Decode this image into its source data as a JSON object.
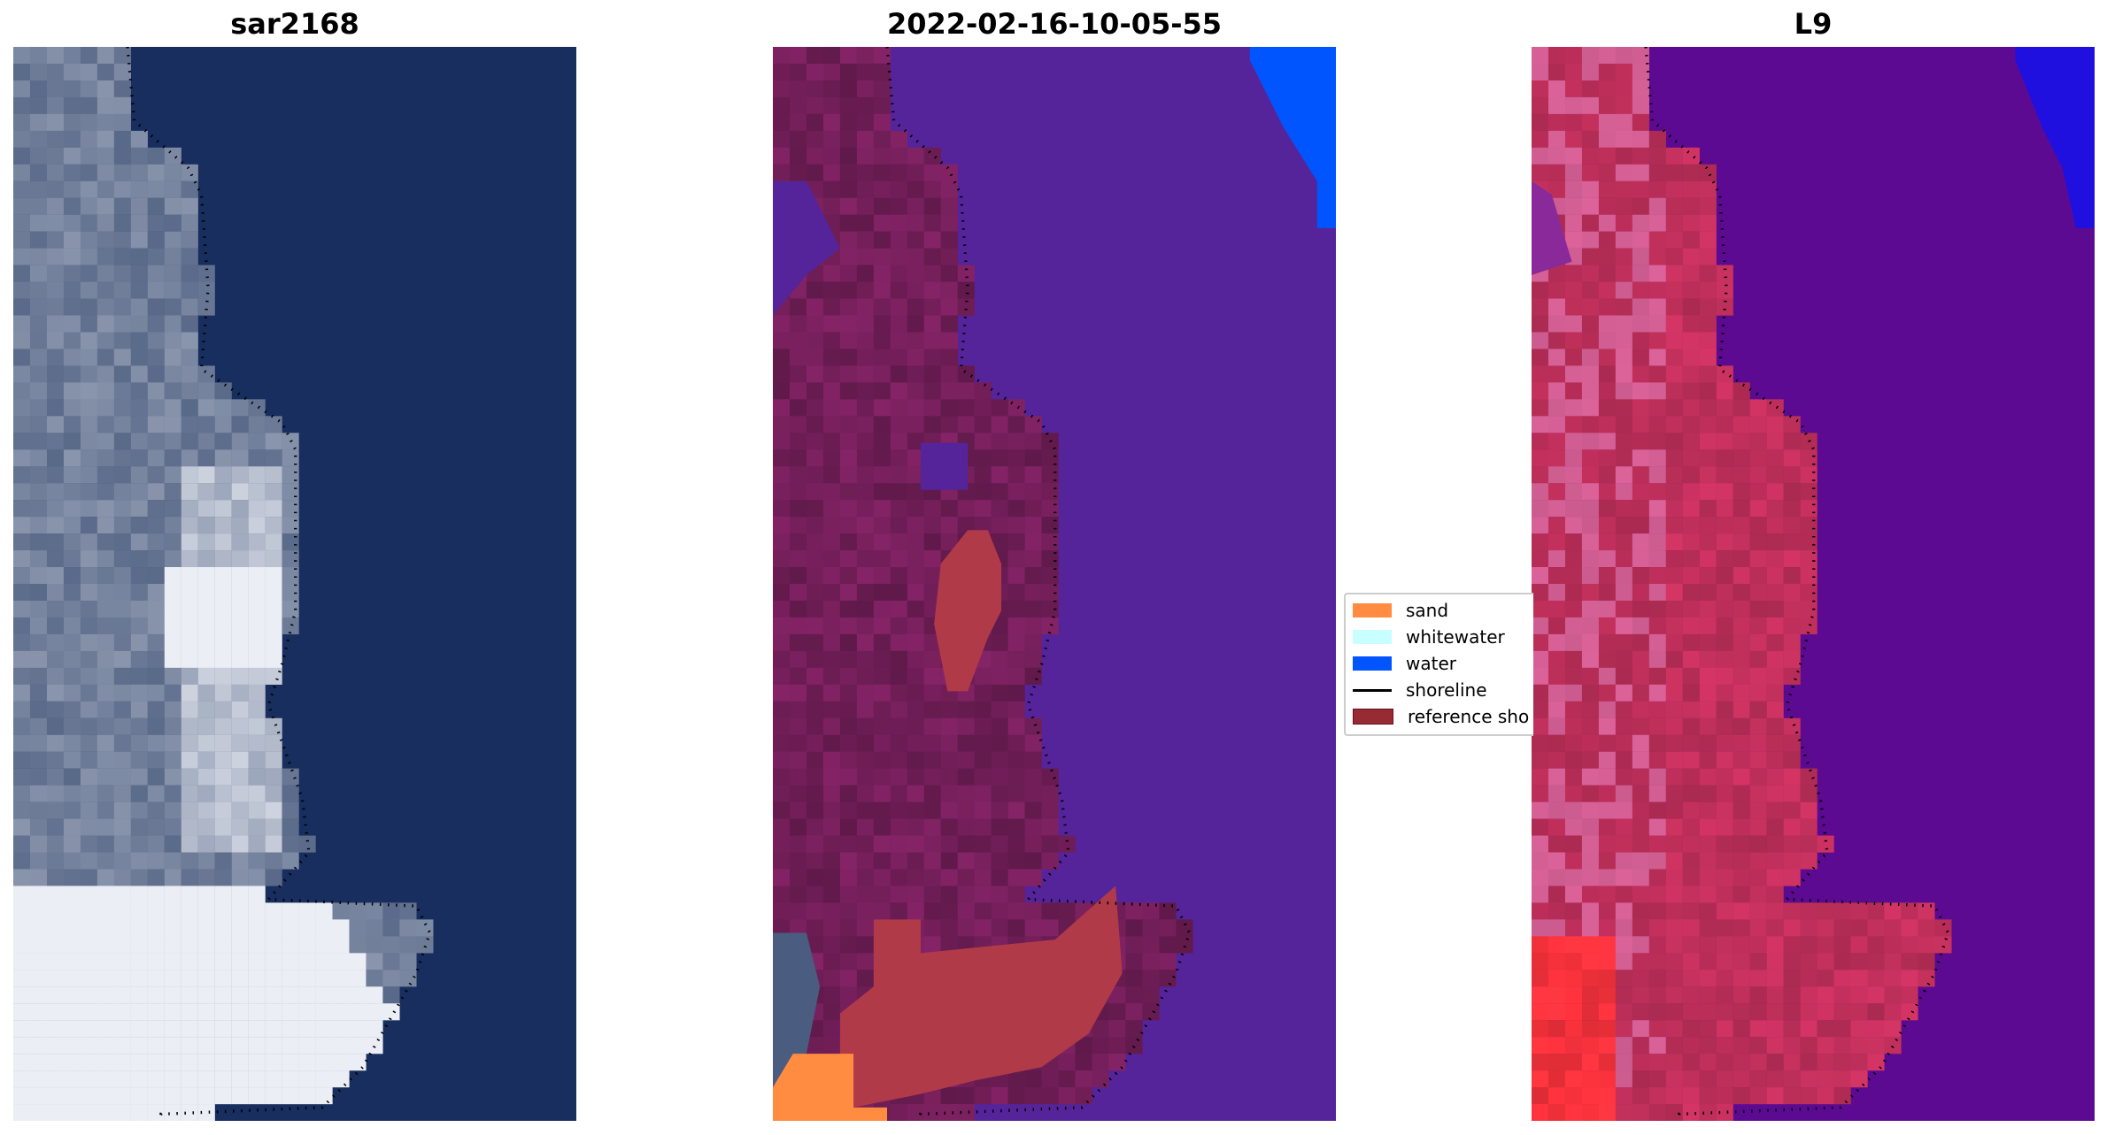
{
  "panels": [
    {
      "title": "sar2168",
      "land_color": "#4a6288",
      "water_color": "#172e5e"
    },
    {
      "title": "2022-02-16-10-05-55",
      "land_color": "#6a1c52",
      "water_color": "#55249a"
    },
    {
      "title": "L9",
      "land_color": "#c2305c",
      "water_color": "#5c0a92"
    }
  ],
  "legend": {
    "items": [
      {
        "label": "sand",
        "color": "#ff8c40",
        "kind": "patch"
      },
      {
        "label": "whitewater",
        "color": "#c8ffff",
        "kind": "patch"
      },
      {
        "label": "water",
        "color": "#0055ff",
        "kind": "patch"
      },
      {
        "label": "shoreline",
        "color": "#000000",
        "kind": "line"
      },
      {
        "label": "reference sho",
        "color": "#962b33",
        "kind": "patch"
      }
    ]
  }
}
